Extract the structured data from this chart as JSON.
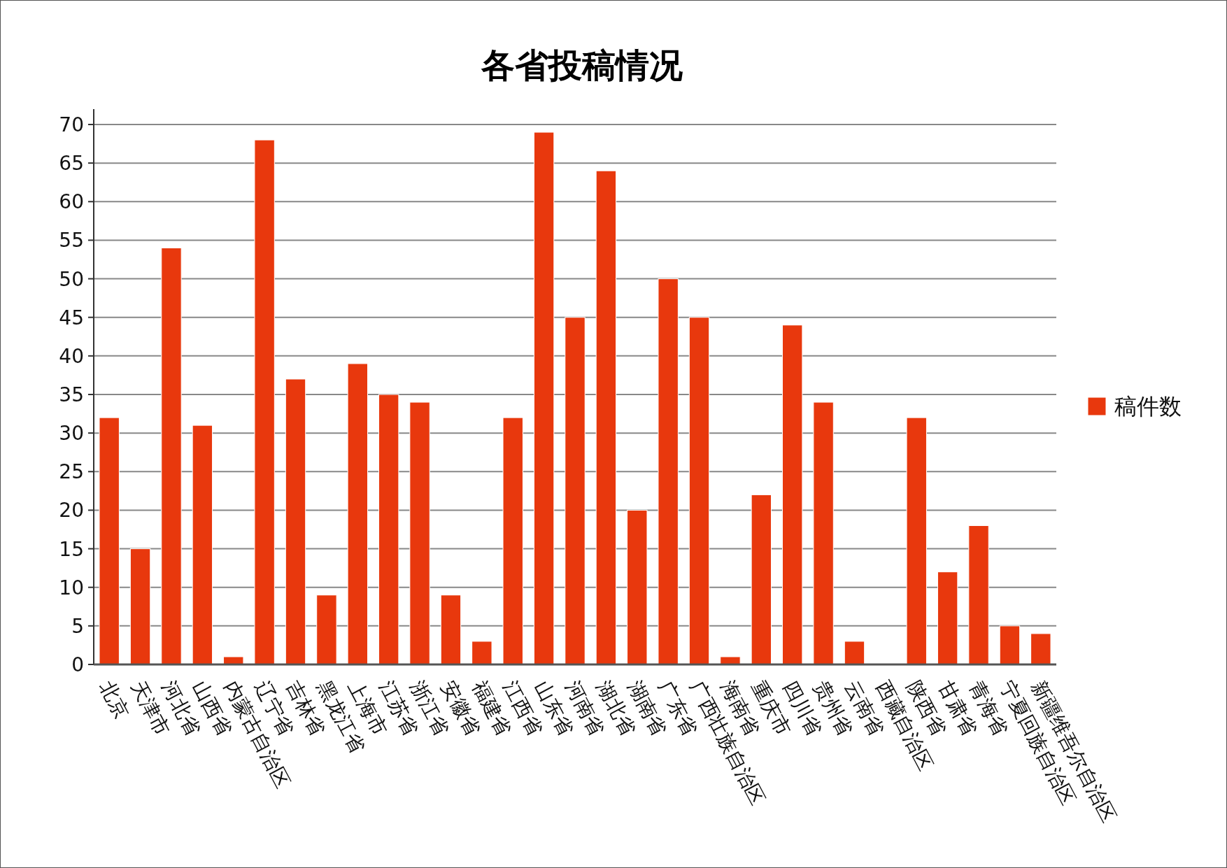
{
  "chart_data": {
    "type": "bar",
    "title": "各省投稿情况",
    "categories": [
      "北京",
      "天津市",
      "河北省",
      "山西省",
      "内蒙古自治区",
      "辽宁省",
      "吉林省",
      "黑龙江省",
      "上海市",
      "江苏省",
      "浙江省",
      "安徽省",
      "福建省",
      "江西省",
      "山东省",
      "河南省",
      "湖北省",
      "湖南省",
      "广东省",
      "广西壮族自治区",
      "海南省",
      "重庆市",
      "四川省",
      "贵州省",
      "云南省",
      "西藏自治区",
      "陕西省",
      "甘肃省",
      "青海省",
      "宁夏回族自治区",
      "新疆维吾尔自治区"
    ],
    "series": [
      {
        "name": "稿件数",
        "color": "#e8380d",
        "values": [
          32,
          15,
          54,
          31,
          1,
          68,
          37,
          9,
          39,
          35,
          34,
          9,
          3,
          32,
          69,
          45,
          64,
          20,
          50,
          45,
          1,
          22,
          44,
          34,
          3,
          0,
          32,
          12,
          18,
          5,
          4
        ]
      }
    ],
    "ylim": [
      0,
      70
    ],
    "yticks": [
      0,
      5,
      10,
      15,
      20,
      25,
      30,
      35,
      40,
      45,
      50,
      55,
      60,
      65,
      70
    ],
    "grid": "y",
    "legend": "right"
  }
}
